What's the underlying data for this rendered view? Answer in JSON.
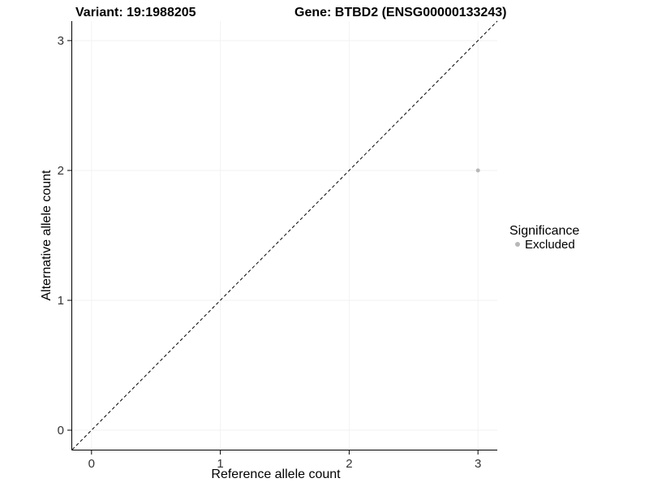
{
  "chart_data": {
    "type": "scatter",
    "title_left": "Variant: 19:1988205",
    "title_right": "Gene: BTBD2 (ENSG00000133243)",
    "xlabel": "Reference allele count",
    "ylabel": "Alternative allele count",
    "xlim": [
      -0.15,
      3.15
    ],
    "ylim": [
      -0.15,
      3.15
    ],
    "xticks": [
      "0",
      "1",
      "2",
      "3"
    ],
    "yticks": [
      "0",
      "1",
      "2",
      "3"
    ],
    "xtick_values": [
      0,
      1,
      2,
      3
    ],
    "ytick_values": [
      0,
      1,
      2,
      3
    ],
    "grid": true,
    "grid_color": "#f2f2f2",
    "axis_color": "#000000",
    "tick_label_color": "#333333",
    "abline": {
      "slope": 1,
      "intercept": 0,
      "linetype": "dashed",
      "color": "#000000"
    },
    "series": [
      {
        "name": "Excluded",
        "color": "#b8b8b8",
        "point_radius": 2.5,
        "points": [
          {
            "x": 3,
            "y": 2
          }
        ]
      }
    ],
    "legend": {
      "title": "Significance",
      "position": "right",
      "entries": [
        {
          "label": "Excluded",
          "color": "#b8b8b8"
        }
      ]
    }
  }
}
